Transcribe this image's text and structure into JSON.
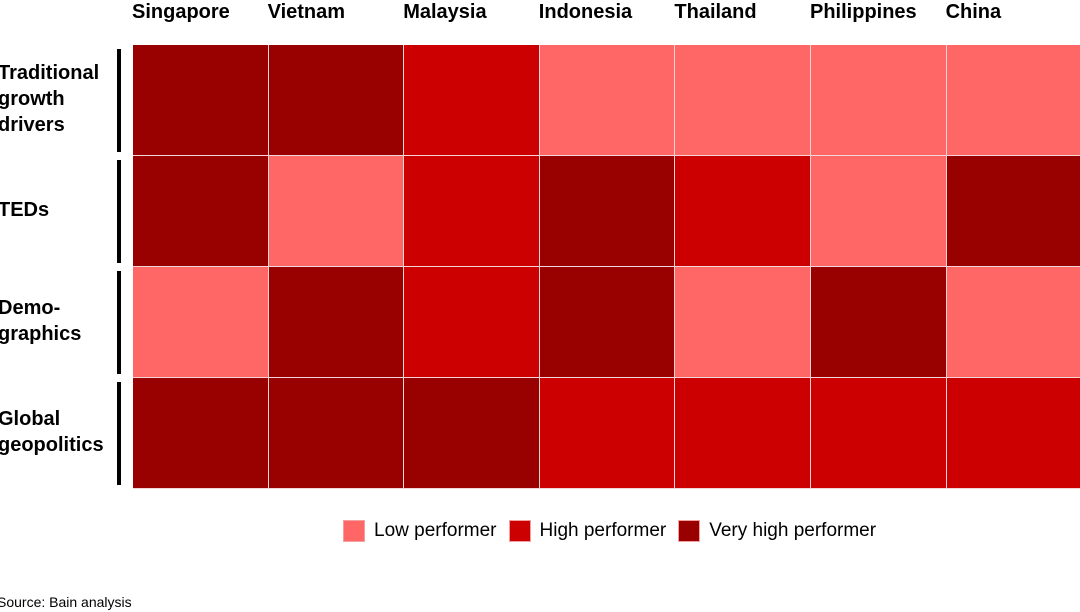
{
  "chart_data": {
    "type": "heatmap",
    "columns": [
      "Singapore",
      "Vietnam",
      "Malaysia",
      "Indonesia",
      "Thailand",
      "Philippines",
      "China"
    ],
    "rows": [
      {
        "label": "Traditional growth drivers",
        "lines": [
          "Traditional",
          "growth",
          "drivers"
        ],
        "values": [
          2,
          2,
          1,
          0,
          0,
          0,
          0
        ]
      },
      {
        "label": "TEDs",
        "lines": [
          "TEDs"
        ],
        "values": [
          2,
          0,
          1,
          2,
          1,
          0,
          2
        ]
      },
      {
        "label": "Demographics",
        "lines": [
          "Demo-",
          "graphics"
        ],
        "values": [
          0,
          2,
          1,
          2,
          0,
          2,
          0
        ]
      },
      {
        "label": "Global geopolitics",
        "lines": [
          "Global",
          "geopolitics"
        ],
        "values": [
          2,
          2,
          2,
          1,
          1,
          1,
          1
        ]
      }
    ],
    "levels": [
      {
        "value": 0,
        "name": "Low performer",
        "color": "#FF6666"
      },
      {
        "value": 1,
        "name": "High performer",
        "color": "#CC0000"
      },
      {
        "value": 2,
        "name": "Very high performer",
        "color": "#990000"
      }
    ],
    "legend_position": "bottom"
  },
  "source": "Source: Bain analysis"
}
